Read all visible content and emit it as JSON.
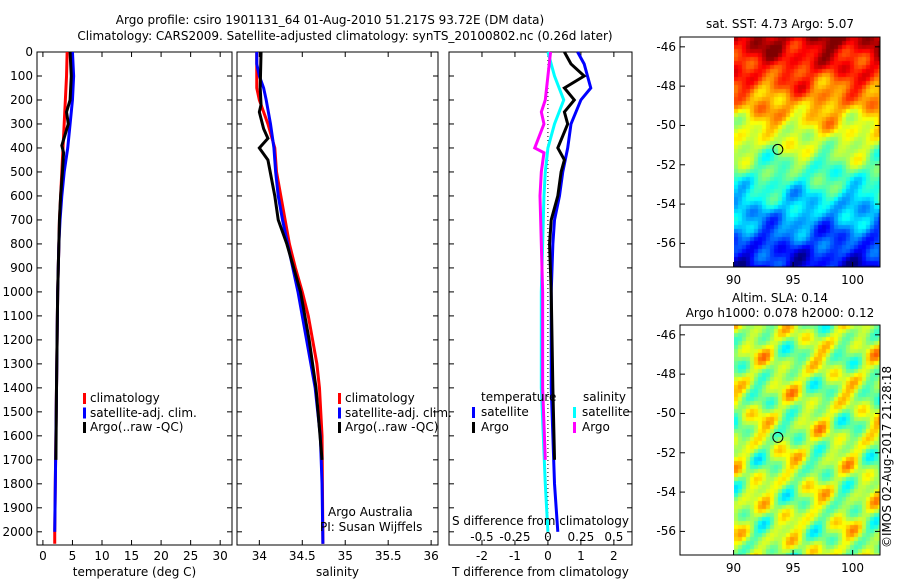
{
  "title": {
    "line1": "Argo profile: csiro 1901131_64 01-Aug-2010 51.217S 93.72E (DM data)",
    "line2": "Climatology: CARS2009. Satellite-adjusted climatology: synTS_20100802.nc (0.26d later)"
  },
  "colors": {
    "climatology": "#ff0000",
    "satellite": "#0000ff",
    "argo": "#000000",
    "sal_satellite": "#00ffff",
    "sal_argo": "#ff00ff"
  },
  "depth_ticks": [
    "0",
    "100",
    "200",
    "300",
    "400",
    "500",
    "600",
    "700",
    "800",
    "900",
    "1000",
    "1100",
    "1200",
    "1300",
    "1400",
    "1500",
    "1600",
    "1700",
    "1800",
    "1900",
    "2000"
  ],
  "chart_data": [
    {
      "type": "line",
      "name": "temperature",
      "xlabel": "temperature (deg C)",
      "ylabel": "depth",
      "xlim": [
        -1,
        32
      ],
      "ylim": [
        2055,
        0
      ],
      "xticks": [
        "0",
        "5",
        "10",
        "15",
        "20",
        "25",
        "30"
      ],
      "legend": [
        "climatology",
        "satellite-adj. clim.",
        "Argo(..raw -QC)"
      ],
      "series": [
        {
          "name": "climatology",
          "color": "#ff0000",
          "points": [
            [
              0,
              4.1
            ],
            [
              100,
              4
            ],
            [
              200,
              3.8
            ],
            [
              300,
              3.6
            ],
            [
              400,
              3.4
            ],
            [
              500,
              3.2
            ],
            [
              600,
              3
            ],
            [
              700,
              2.8
            ],
            [
              800,
              2.7
            ],
            [
              1000,
              2.5
            ],
            [
              1200,
              2.4
            ],
            [
              1400,
              2.3
            ],
            [
              1600,
              2.2
            ],
            [
              1800,
              2.1
            ],
            [
              2000,
              2
            ],
            [
              2050,
              2
            ]
          ]
        },
        {
          "name": "satellite-adj. clim.",
          "color": "#0000ff",
          "points": [
            [
              0,
              5
            ],
            [
              100,
              5.2
            ],
            [
              200,
              5
            ],
            [
              300,
              4.6
            ],
            [
              400,
              4.2
            ],
            [
              500,
              3.6
            ],
            [
              600,
              3.2
            ],
            [
              700,
              2.9
            ],
            [
              800,
              2.7
            ],
            [
              1000,
              2.5
            ],
            [
              1400,
              2.3
            ],
            [
              1800,
              2.1
            ],
            [
              2000,
              2
            ]
          ]
        },
        {
          "name": "Argo(..raw -QC)",
          "color": "#000000",
          "points": [
            [
              0,
              4.6
            ],
            [
              100,
              4.8
            ],
            [
              200,
              4.6
            ],
            [
              250,
              4.0
            ],
            [
              300,
              4.3
            ],
            [
              390,
              3.2
            ],
            [
              420,
              3.5
            ],
            [
              500,
              3.3
            ],
            [
              600,
              3.0
            ],
            [
              700,
              2.8
            ],
            [
              1000,
              2.5
            ],
            [
              1400,
              2.3
            ],
            [
              1700,
              2.2
            ]
          ]
        }
      ]
    },
    {
      "type": "line",
      "name": "salinity",
      "xlabel": "salinity",
      "xlim": [
        33.74,
        36.08
      ],
      "ylim": [
        2055,
        0
      ],
      "xticks": [
        "34",
        "34.5",
        "35",
        "35.5",
        "36"
      ],
      "legend": [
        "climatology",
        "satellite-adj. clim.",
        "Argo(..raw -QC)"
      ],
      "annotation": [
        "Argo Australia",
        "PI: Susan Wijffels"
      ],
      "series": [
        {
          "name": "climatology",
          "color": "#ff0000",
          "points": [
            [
              0,
              33.97
            ],
            [
              150,
              33.97
            ],
            [
              200,
              34.0
            ],
            [
              300,
              34.1
            ],
            [
              400,
              34.18
            ],
            [
              500,
              34.2
            ],
            [
              600,
              34.25
            ],
            [
              700,
              34.3
            ],
            [
              800,
              34.35
            ],
            [
              900,
              34.42
            ],
            [
              1000,
              34.5
            ],
            [
              1100,
              34.57
            ],
            [
              1200,
              34.62
            ],
            [
              1300,
              34.67
            ],
            [
              1400,
              34.7
            ],
            [
              1600,
              34.73
            ],
            [
              2050,
              34.74
            ]
          ]
        },
        {
          "name": "satellite-adj. clim.",
          "color": "#0000ff",
          "points": [
            [
              0,
              33.97
            ],
            [
              50,
              33.97
            ],
            [
              100,
              34.0
            ],
            [
              150,
              34.05
            ],
            [
              200,
              34.08
            ],
            [
              300,
              34.13
            ],
            [
              400,
              34.17
            ],
            [
              500,
              34.19
            ],
            [
              600,
              34.22
            ],
            [
              700,
              34.27
            ],
            [
              800,
              34.33
            ],
            [
              900,
              34.39
            ],
            [
              1000,
              34.45
            ],
            [
              1200,
              34.55
            ],
            [
              1400,
              34.65
            ],
            [
              1600,
              34.71
            ],
            [
              1800,
              34.73
            ],
            [
              2050,
              34.74
            ]
          ]
        },
        {
          "name": "Argo(..raw -QC)",
          "color": "#000000",
          "points": [
            [
              0,
              34.02
            ],
            [
              150,
              34.01
            ],
            [
              220,
              34.02
            ],
            [
              250,
              34.0
            ],
            [
              320,
              34.05
            ],
            [
              360,
              34.1
            ],
            [
              400,
              34.0
            ],
            [
              450,
              34.1
            ],
            [
              600,
              34.18
            ],
            [
              700,
              34.22
            ],
            [
              800,
              34.32
            ],
            [
              900,
              34.4
            ],
            [
              1000,
              34.48
            ],
            [
              1200,
              34.58
            ],
            [
              1400,
              34.66
            ],
            [
              1700,
              34.73
            ]
          ]
        }
      ]
    },
    {
      "type": "line",
      "name": "differences",
      "xlabel": "T difference from climatology",
      "x2label": "S difference from climatology",
      "xlim": [
        -3,
        2.55
      ],
      "ylim": [
        2055,
        0
      ],
      "xticks": [
        "-2",
        "-1",
        "0",
        "1",
        "2"
      ],
      "x2ticks": [
        "-0.5",
        "-0.25",
        "0",
        "0.25",
        "0.5"
      ],
      "legend": {
        "temperature": "temperature",
        "salinity": "salinity",
        "satellite": "satellite",
        "argo": "Argo"
      },
      "series": [
        {
          "name": "T satellite",
          "unit": "degC",
          "color": "#0000ff",
          "points": [
            [
              0,
              0.9
            ],
            [
              50,
              1.1
            ],
            [
              100,
              1.2
            ],
            [
              150,
              1.3
            ],
            [
              200,
              1.0
            ],
            [
              300,
              0.7
            ],
            [
              400,
              0.6
            ],
            [
              500,
              0.45
            ],
            [
              600,
              0.35
            ],
            [
              700,
              0.2
            ],
            [
              800,
              0.15
            ],
            [
              1000,
              0.1
            ],
            [
              1400,
              0.1
            ],
            [
              1800,
              0.2
            ],
            [
              2000,
              0.3
            ]
          ]
        },
        {
          "name": "T Argo",
          "unit": "degC",
          "color": "#000000",
          "points": [
            [
              0,
              0.5
            ],
            [
              50,
              0.7
            ],
            [
              100,
              1.1
            ],
            [
              150,
              0.5
            ],
            [
              200,
              0.8
            ],
            [
              250,
              0.5
            ],
            [
              300,
              0.6
            ],
            [
              400,
              0.3
            ],
            [
              450,
              0.5
            ],
            [
              500,
              0.4
            ],
            [
              600,
              0.3
            ],
            [
              700,
              0.1
            ],
            [
              800,
              0.05
            ],
            [
              1000,
              0.1
            ],
            [
              1400,
              0.15
            ],
            [
              1700,
              0.2
            ]
          ]
        },
        {
          "name": "S satellite",
          "unit": "psu",
          "color": "#00ffff",
          "points": [
            [
              0,
              0.0
            ],
            [
              100,
              0.05
            ],
            [
              200,
              0.12
            ],
            [
              300,
              0.05
            ],
            [
              400,
              0.0
            ],
            [
              500,
              -0.02
            ],
            [
              600,
              -0.03
            ],
            [
              800,
              -0.04
            ],
            [
              1000,
              -0.05
            ],
            [
              1400,
              -0.05
            ],
            [
              1800,
              -0.02
            ],
            [
              2000,
              0.0
            ]
          ]
        },
        {
          "name": "S Argo",
          "unit": "psu",
          "color": "#ff00ff",
          "points": [
            [
              0,
              0.02
            ],
            [
              100,
              0.0
            ],
            [
              200,
              -0.02
            ],
            [
              250,
              -0.05
            ],
            [
              300,
              -0.03
            ],
            [
              400,
              -0.1
            ],
            [
              420,
              -0.03
            ],
            [
              500,
              -0.05
            ],
            [
              600,
              -0.06
            ],
            [
              800,
              -0.05
            ],
            [
              1000,
              -0.04
            ],
            [
              1400,
              -0.04
            ],
            [
              1700,
              -0.02
            ]
          ]
        }
      ]
    }
  ],
  "maps": {
    "sst": {
      "title": "sat. SST: 4.73 Argo: 5.07"
    },
    "sla": {
      "title1": "Altim. SLA: 0.14",
      "title2": "Argo h1000: 0.078 h2000: 0.12"
    },
    "lon_ticks": [
      "90",
      "95",
      "100"
    ],
    "lat_ticks": [
      "-46",
      "-48",
      "-50",
      "-52",
      "-54",
      "-56"
    ],
    "profile_lon": 93.72,
    "profile_lat": -51.217
  },
  "credit": "©IMOS 02-Aug-2017 21:28:18"
}
